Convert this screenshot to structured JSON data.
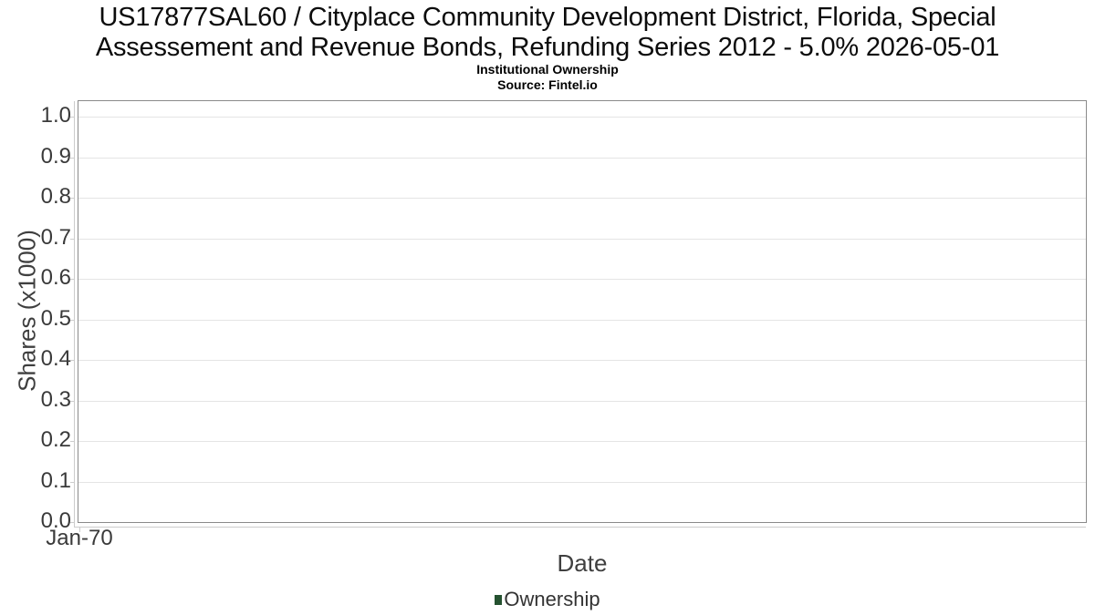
{
  "header": {
    "title_lines": [
      "US17877SAL60 / Cityplace Community Development District, Florida, Special",
      "Assessement and Revenue Bonds, Refunding Series 2012 - 5.0% 2026-05-01"
    ],
    "subtitle": "Institutional Ownership",
    "source": "Source: Fintel.io"
  },
  "chart_data": {
    "type": "line",
    "title": "US17877SAL60 / Cityplace Community Development District, Florida, Special Assessement and Revenue Bonds, Refunding Series 2012 - 5.0% 2026-05-01",
    "subtitle": "Institutional Ownership",
    "source": "Source: Fintel.io",
    "xlabel": "Date",
    "ylabel": "Shares (x1000)",
    "xticks": [
      "Jan-70"
    ],
    "yticks": [
      0.0,
      0.1,
      0.2,
      0.3,
      0.4,
      0.5,
      0.6,
      0.7,
      0.8,
      0.9,
      1.0
    ],
    "ylim": [
      0,
      1.04
    ],
    "grid": true,
    "legend_position": "bottom",
    "legend": [
      {
        "label": "Ownership",
        "color": "#255230"
      }
    ],
    "series": [
      {
        "name": "Ownership",
        "x": [],
        "values": []
      }
    ]
  },
  "colors": {
    "title_text": "#0c0c0c",
    "tick_text": "#3a3a3a",
    "axis_label_text": "#3f3f3f",
    "plot_border": "#8a8a8a",
    "gridline": "#e4e4e4",
    "axis_line": "#cccccc",
    "series_green": "#255230"
  }
}
